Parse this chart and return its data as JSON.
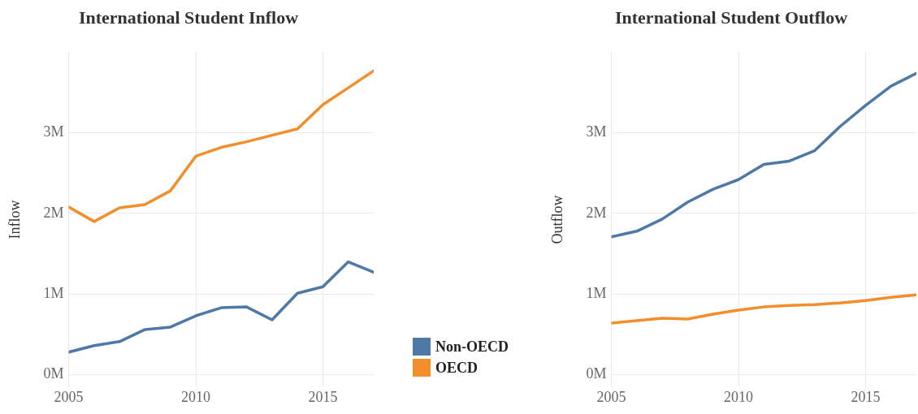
{
  "chart_data": [
    {
      "type": "line",
      "title": "International Student Inflow",
      "ylabel": "Inflow",
      "legend": "right",
      "grid": true,
      "x": [
        2005,
        2006,
        2007,
        2008,
        2009,
        2010,
        2011,
        2012,
        2013,
        2014,
        2015,
        2016,
        2017
      ],
      "xlim": [
        2005,
        2017
      ],
      "xticks": [
        2005,
        2010,
        2015
      ],
      "ylim": [
        -0.15,
        4.0
      ],
      "yticks": [
        {
          "value": 0,
          "label": "0M"
        },
        {
          "value": 1,
          "label": "1M"
        },
        {
          "value": 2,
          "label": "2M"
        },
        {
          "value": 3,
          "label": "3M"
        }
      ],
      "series": [
        {
          "name": "Non-OECD",
          "color": "#4e79a7",
          "values": [
            0.28,
            0.36,
            0.41,
            0.56,
            0.59,
            0.73,
            0.83,
            0.84,
            0.68,
            1.01,
            1.09,
            1.4,
            1.27
          ]
        },
        {
          "name": "OECD",
          "color": "#f28e2b",
          "values": [
            2.08,
            1.9,
            2.07,
            2.11,
            2.28,
            2.71,
            2.82,
            2.89,
            2.97,
            3.05,
            3.35,
            3.56,
            3.77
          ]
        }
      ]
    },
    {
      "type": "line",
      "title": "International Student Outflow",
      "ylabel": "Outflow",
      "grid": true,
      "x": [
        2005,
        2006,
        2007,
        2008,
        2009,
        2010,
        2011,
        2012,
        2013,
        2014,
        2015,
        2016,
        2017
      ],
      "xlim": [
        2005,
        2017
      ],
      "xticks": [
        2005,
        2010,
        2015
      ],
      "ylim": [
        -0.15,
        4.0
      ],
      "yticks": [
        {
          "value": 0,
          "label": "0M"
        },
        {
          "value": 1,
          "label": "1M"
        },
        {
          "value": 2,
          "label": "2M"
        },
        {
          "value": 3,
          "label": "3M"
        }
      ],
      "series": [
        {
          "color": "#4e79a7",
          "values": [
            1.71,
            1.78,
            1.93,
            2.14,
            2.3,
            2.42,
            2.61,
            2.65,
            2.78,
            3.08,
            3.34,
            3.58,
            3.74
          ]
        },
        {
          "color": "#f28e2b",
          "values": [
            0.64,
            0.67,
            0.7,
            0.69,
            0.75,
            0.8,
            0.84,
            0.86,
            0.87,
            0.89,
            0.92,
            0.96,
            0.99
          ]
        }
      ]
    }
  ]
}
